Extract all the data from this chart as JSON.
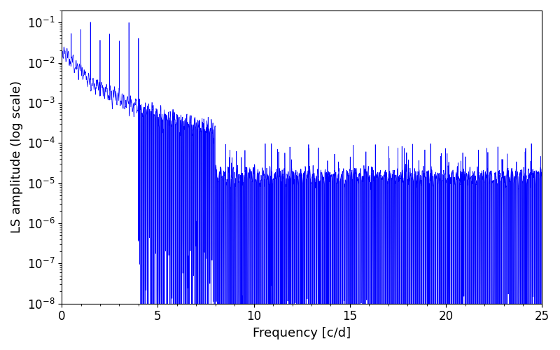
{
  "title": "",
  "xlabel": "Frequency [c/d]",
  "ylabel": "LS amplitude (log scale)",
  "xlim": [
    0,
    25
  ],
  "ylim": [
    1e-08,
    0.2
  ],
  "line_color": "#0000ff",
  "line_width": 0.5,
  "background_color": "#ffffff",
  "freq_max": 25.0,
  "n_points": 8000,
  "seed": 7,
  "xlabel_fontsize": 13,
  "ylabel_fontsize": 13,
  "tick_labelsize": 12
}
